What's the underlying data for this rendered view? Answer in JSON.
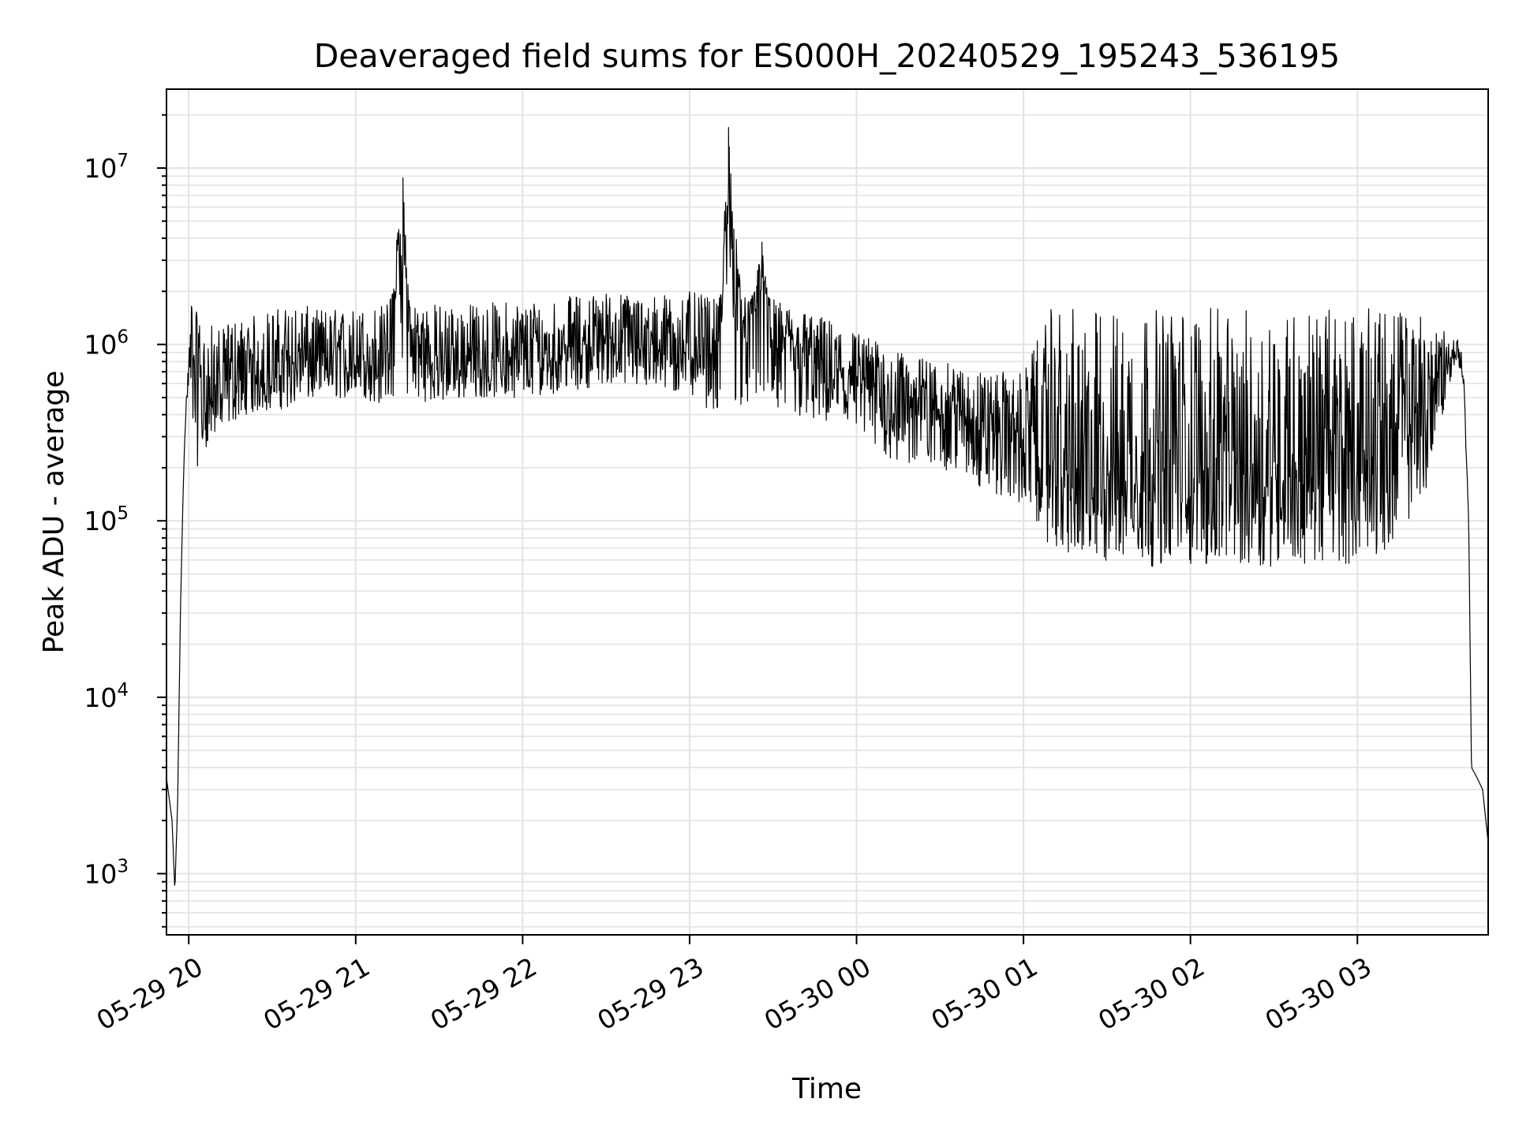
{
  "chart_data": {
    "type": "line",
    "title": "Deaveraged field sums for ES000H_20240529_195243_536195",
    "xlabel": "Time",
    "ylabel": "Peak ADU - average",
    "yscale": "log",
    "ylim": [
      450,
      28000000
    ],
    "xlim": [
      "2024-05-29 19:52",
      "2024-05-30 03:47"
    ],
    "grid": true,
    "x_ticks": [
      "05-29 20",
      "05-29 21",
      "05-29 22",
      "05-29 23",
      "05-30 00",
      "05-30 01",
      "05-30 02",
      "05-30 03"
    ],
    "y_ticks": [
      {
        "value": 1000,
        "base": "10",
        "exp": "3"
      },
      {
        "value": 10000,
        "base": "10",
        "exp": "4"
      },
      {
        "value": 100000,
        "base": "10",
        "exp": "5"
      },
      {
        "value": 1000000,
        "base": "10",
        "exp": "6"
      },
      {
        "value": 10000000,
        "base": "10",
        "exp": "7"
      }
    ],
    "series": [
      {
        "x": [
          "2024-05-29 19:52",
          "2024-05-29 19:54",
          "2024-05-29 19:55",
          "2024-05-29 19:56",
          "2024-05-29 19:57",
          "2024-05-29 19:58",
          "2024-05-29 19:59",
          "2024-05-29 20:00",
          "2024-05-29 20:01",
          "2024-05-29 20:03",
          "2024-05-29 20:05",
          "2024-05-29 20:08",
          "2024-05-29 20:10",
          "2024-05-29 20:12",
          "2024-05-29 20:15",
          "2024-05-29 20:20",
          "2024-05-29 20:30",
          "2024-05-29 20:40",
          "2024-05-29 20:45",
          "2024-05-29 21:00",
          "2024-05-29 21:10",
          "2024-05-29 21:17",
          "2024-05-29 21:20",
          "2024-05-29 21:30",
          "2024-05-29 21:40",
          "2024-05-29 22:00",
          "2024-05-29 22:20",
          "2024-05-29 22:30",
          "2024-05-29 22:45",
          "2024-05-29 23:00",
          "2024-05-29 23:10",
          "2024-05-29 23:14",
          "2024-05-29 23:20",
          "2024-05-29 23:26",
          "2024-05-29 23:30",
          "2024-05-29 23:45",
          "2024-05-30 00:00",
          "2024-05-30 00:15",
          "2024-05-30 00:30",
          "2024-05-30 00:45",
          "2024-05-30 01:00",
          "2024-05-30 01:10",
          "2024-05-30 01:20",
          "2024-05-30 01:30",
          "2024-05-30 01:50",
          "2024-05-30 02:10",
          "2024-05-30 02:30",
          "2024-05-30 02:50",
          "2024-05-30 03:05",
          "2024-05-30 03:15",
          "2024-05-30 03:25",
          "2024-05-30 03:33",
          "2024-05-30 03:36",
          "2024-05-30 03:38",
          "2024-05-30 03:40",
          "2024-05-30 03:41",
          "2024-05-30 03:43",
          "2024-05-30 03:45",
          "2024-05-30 03:47"
        ],
        "y": [
          3500,
          2000,
          800,
          2500,
          30000,
          150000,
          450000,
          700000,
          1200000,
          900000,
          400000,
          500000,
          600000,
          500000,
          700000,
          600000,
          700000,
          800000,
          800000,
          800000,
          800000,
          8800000,
          900000,
          800000,
          800000,
          800000,
          1000000,
          1100000,
          1000000,
          1000000,
          900000,
          17000000,
          900000,
          3800000,
          1000000,
          800000,
          600000,
          500000,
          450000,
          380000,
          300000,
          250000,
          120000,
          200000,
          180000,
          180000,
          200000,
          200000,
          250000,
          300000,
          450000,
          800000,
          1000000,
          700000,
          100000,
          4000,
          3500,
          3000,
          1500
        ],
        "band_min": [
          3500,
          2000,
          800,
          2500,
          30000,
          150000,
          400000,
          500000,
          300000,
          200000,
          250000,
          280000,
          300000,
          300000,
          350000,
          400000,
          420000,
          450000,
          480000,
          500000,
          450000,
          500000,
          500000,
          450000,
          500000,
          500000,
          550000,
          600000,
          550000,
          500000,
          400000,
          450000,
          450000,
          450000,
          400000,
          350000,
          300000,
          200000,
          200000,
          150000,
          120000,
          70000,
          60000,
          55000,
          55000,
          55000,
          55000,
          55000,
          60000,
          80000,
          150000,
          600000,
          800000,
          600000,
          100000,
          4000,
          3500,
          3000,
          1500
        ],
        "band_max": [
          3500,
          2000,
          800,
          2500,
          30000,
          150000,
          500000,
          900000,
          1800000,
          1500000,
          1200000,
          1300000,
          1300000,
          1200000,
          1400000,
          1400000,
          1600000,
          1700000,
          1600000,
          1600000,
          1700000,
          1800000,
          1800000,
          1700000,
          1700000,
          1800000,
          1900000,
          2000000,
          1900000,
          2000000,
          1800000,
          2000000,
          1900000,
          2000000,
          1800000,
          1500000,
          1200000,
          900000,
          800000,
          700000,
          700000,
          1600000,
          1600000,
          1600000,
          1600000,
          1600000,
          1600000,
          1600000,
          1600000,
          1600000,
          1500000,
          1100000,
          1100000,
          900000,
          100000,
          4000,
          3500,
          3000,
          1500
        ]
      }
    ]
  }
}
